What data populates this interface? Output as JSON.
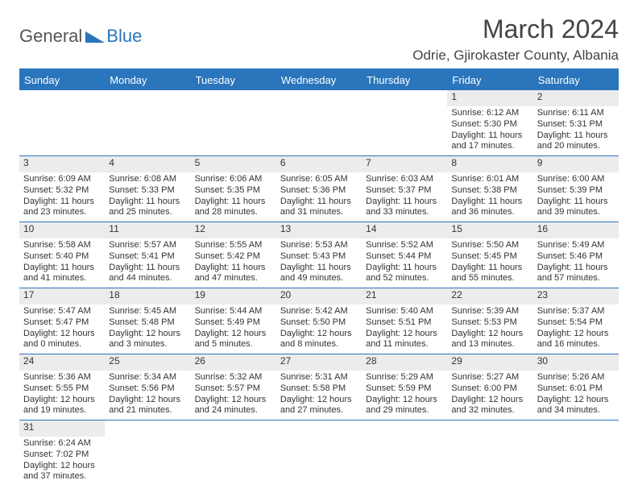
{
  "logo": {
    "general": "General",
    "blue": "Blue"
  },
  "title": "March 2024",
  "location": "Odrie, Gjirokaster County, Albania",
  "colors": {
    "accent": "#2a75bb",
    "header_text": "#ffffff",
    "daynum_bg": "#ececec",
    "page_bg": "#ffffff"
  },
  "day_headers": [
    "Sunday",
    "Monday",
    "Tuesday",
    "Wednesday",
    "Thursday",
    "Friday",
    "Saturday"
  ],
  "weeks": [
    [
      {
        "day": "",
        "sunrise": "",
        "sunset": "",
        "daylight": ""
      },
      {
        "day": "",
        "sunrise": "",
        "sunset": "",
        "daylight": ""
      },
      {
        "day": "",
        "sunrise": "",
        "sunset": "",
        "daylight": ""
      },
      {
        "day": "",
        "sunrise": "",
        "sunset": "",
        "daylight": ""
      },
      {
        "day": "",
        "sunrise": "",
        "sunset": "",
        "daylight": ""
      },
      {
        "day": "1",
        "sunrise": "Sunrise: 6:12 AM",
        "sunset": "Sunset: 5:30 PM",
        "daylight": "Daylight: 11 hours and 17 minutes."
      },
      {
        "day": "2",
        "sunrise": "Sunrise: 6:11 AM",
        "sunset": "Sunset: 5:31 PM",
        "daylight": "Daylight: 11 hours and 20 minutes."
      }
    ],
    [
      {
        "day": "3",
        "sunrise": "Sunrise: 6:09 AM",
        "sunset": "Sunset: 5:32 PM",
        "daylight": "Daylight: 11 hours and 23 minutes."
      },
      {
        "day": "4",
        "sunrise": "Sunrise: 6:08 AM",
        "sunset": "Sunset: 5:33 PM",
        "daylight": "Daylight: 11 hours and 25 minutes."
      },
      {
        "day": "5",
        "sunrise": "Sunrise: 6:06 AM",
        "sunset": "Sunset: 5:35 PM",
        "daylight": "Daylight: 11 hours and 28 minutes."
      },
      {
        "day": "6",
        "sunrise": "Sunrise: 6:05 AM",
        "sunset": "Sunset: 5:36 PM",
        "daylight": "Daylight: 11 hours and 31 minutes."
      },
      {
        "day": "7",
        "sunrise": "Sunrise: 6:03 AM",
        "sunset": "Sunset: 5:37 PM",
        "daylight": "Daylight: 11 hours and 33 minutes."
      },
      {
        "day": "8",
        "sunrise": "Sunrise: 6:01 AM",
        "sunset": "Sunset: 5:38 PM",
        "daylight": "Daylight: 11 hours and 36 minutes."
      },
      {
        "day": "9",
        "sunrise": "Sunrise: 6:00 AM",
        "sunset": "Sunset: 5:39 PM",
        "daylight": "Daylight: 11 hours and 39 minutes."
      }
    ],
    [
      {
        "day": "10",
        "sunrise": "Sunrise: 5:58 AM",
        "sunset": "Sunset: 5:40 PM",
        "daylight": "Daylight: 11 hours and 41 minutes."
      },
      {
        "day": "11",
        "sunrise": "Sunrise: 5:57 AM",
        "sunset": "Sunset: 5:41 PM",
        "daylight": "Daylight: 11 hours and 44 minutes."
      },
      {
        "day": "12",
        "sunrise": "Sunrise: 5:55 AM",
        "sunset": "Sunset: 5:42 PM",
        "daylight": "Daylight: 11 hours and 47 minutes."
      },
      {
        "day": "13",
        "sunrise": "Sunrise: 5:53 AM",
        "sunset": "Sunset: 5:43 PM",
        "daylight": "Daylight: 11 hours and 49 minutes."
      },
      {
        "day": "14",
        "sunrise": "Sunrise: 5:52 AM",
        "sunset": "Sunset: 5:44 PM",
        "daylight": "Daylight: 11 hours and 52 minutes."
      },
      {
        "day": "15",
        "sunrise": "Sunrise: 5:50 AM",
        "sunset": "Sunset: 5:45 PM",
        "daylight": "Daylight: 11 hours and 55 minutes."
      },
      {
        "day": "16",
        "sunrise": "Sunrise: 5:49 AM",
        "sunset": "Sunset: 5:46 PM",
        "daylight": "Daylight: 11 hours and 57 minutes."
      }
    ],
    [
      {
        "day": "17",
        "sunrise": "Sunrise: 5:47 AM",
        "sunset": "Sunset: 5:47 PM",
        "daylight": "Daylight: 12 hours and 0 minutes."
      },
      {
        "day": "18",
        "sunrise": "Sunrise: 5:45 AM",
        "sunset": "Sunset: 5:48 PM",
        "daylight": "Daylight: 12 hours and 3 minutes."
      },
      {
        "day": "19",
        "sunrise": "Sunrise: 5:44 AM",
        "sunset": "Sunset: 5:49 PM",
        "daylight": "Daylight: 12 hours and 5 minutes."
      },
      {
        "day": "20",
        "sunrise": "Sunrise: 5:42 AM",
        "sunset": "Sunset: 5:50 PM",
        "daylight": "Daylight: 12 hours and 8 minutes."
      },
      {
        "day": "21",
        "sunrise": "Sunrise: 5:40 AM",
        "sunset": "Sunset: 5:51 PM",
        "daylight": "Daylight: 12 hours and 11 minutes."
      },
      {
        "day": "22",
        "sunrise": "Sunrise: 5:39 AM",
        "sunset": "Sunset: 5:53 PM",
        "daylight": "Daylight: 12 hours and 13 minutes."
      },
      {
        "day": "23",
        "sunrise": "Sunrise: 5:37 AM",
        "sunset": "Sunset: 5:54 PM",
        "daylight": "Daylight: 12 hours and 16 minutes."
      }
    ],
    [
      {
        "day": "24",
        "sunrise": "Sunrise: 5:36 AM",
        "sunset": "Sunset: 5:55 PM",
        "daylight": "Daylight: 12 hours and 19 minutes."
      },
      {
        "day": "25",
        "sunrise": "Sunrise: 5:34 AM",
        "sunset": "Sunset: 5:56 PM",
        "daylight": "Daylight: 12 hours and 21 minutes."
      },
      {
        "day": "26",
        "sunrise": "Sunrise: 5:32 AM",
        "sunset": "Sunset: 5:57 PM",
        "daylight": "Daylight: 12 hours and 24 minutes."
      },
      {
        "day": "27",
        "sunrise": "Sunrise: 5:31 AM",
        "sunset": "Sunset: 5:58 PM",
        "daylight": "Daylight: 12 hours and 27 minutes."
      },
      {
        "day": "28",
        "sunrise": "Sunrise: 5:29 AM",
        "sunset": "Sunset: 5:59 PM",
        "daylight": "Daylight: 12 hours and 29 minutes."
      },
      {
        "day": "29",
        "sunrise": "Sunrise: 5:27 AM",
        "sunset": "Sunset: 6:00 PM",
        "daylight": "Daylight: 12 hours and 32 minutes."
      },
      {
        "day": "30",
        "sunrise": "Sunrise: 5:26 AM",
        "sunset": "Sunset: 6:01 PM",
        "daylight": "Daylight: 12 hours and 34 minutes."
      }
    ],
    [
      {
        "day": "31",
        "sunrise": "Sunrise: 6:24 AM",
        "sunset": "Sunset: 7:02 PM",
        "daylight": "Daylight: 12 hours and 37 minutes."
      },
      {
        "day": "",
        "sunrise": "",
        "sunset": "",
        "daylight": ""
      },
      {
        "day": "",
        "sunrise": "",
        "sunset": "",
        "daylight": ""
      },
      {
        "day": "",
        "sunrise": "",
        "sunset": "",
        "daylight": ""
      },
      {
        "day": "",
        "sunrise": "",
        "sunset": "",
        "daylight": ""
      },
      {
        "day": "",
        "sunrise": "",
        "sunset": "",
        "daylight": ""
      },
      {
        "day": "",
        "sunrise": "",
        "sunset": "",
        "daylight": ""
      }
    ]
  ]
}
